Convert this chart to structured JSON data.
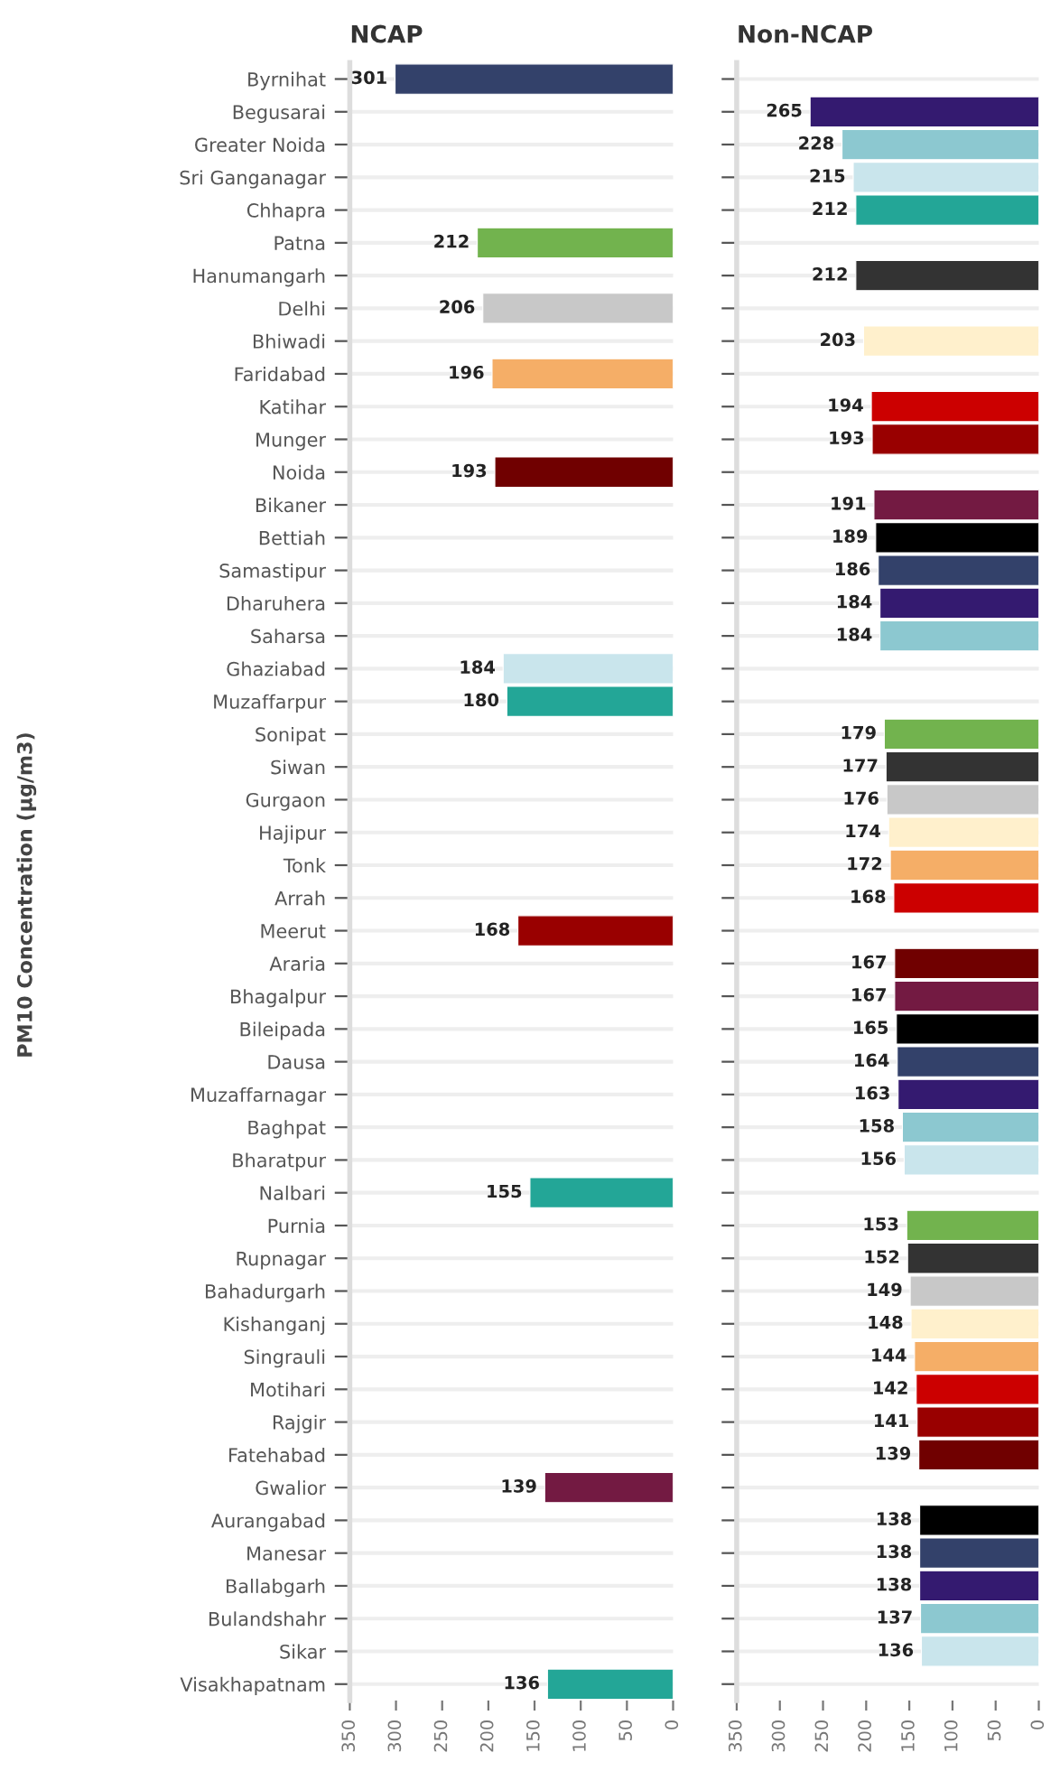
{
  "chart_data": [
    {
      "type": "bar",
      "orientation": "horizontal",
      "title": "NCAP",
      "ylabel": "PM10 Concentration (µg/m3)",
      "categories": [
        "Byrnihat",
        "Begusarai",
        "Greater Noida",
        "Sri Ganganagar",
        "Chhapra",
        "Patna",
        "Hanumangarh",
        "Delhi",
        "Bhiwadi",
        "Faridabad",
        "Katihar",
        "Munger",
        "Noida",
        "Bikaner",
        "Bettiah",
        "Samastipur",
        "Dharuhera",
        "Saharsa",
        "Ghaziabad",
        "Muzaffarpur",
        "Sonipat",
        "Siwan",
        "Gurgaon",
        "Hajipur",
        "Tonk",
        "Arrah",
        "Meerut",
        "Araria",
        "Bhagalpur",
        "Bileipada",
        "Dausa",
        "Muzaffarnagar",
        "Baghpat",
        "Bharatpur",
        "Nalbari",
        "Purnia",
        "Rupnagar",
        "Bahadurgarh",
        "Kishanganj",
        "Singrauli",
        "Motihari",
        "Rajgir",
        "Fatehabad",
        "Gwalior",
        "Aurangabad",
        "Manesar",
        "Ballabgarh",
        "Bulandshahr",
        "Sikar",
        "Visakhapatnam"
      ],
      "values": [
        301,
        null,
        null,
        null,
        null,
        212,
        null,
        206,
        null,
        196,
        null,
        null,
        193,
        null,
        null,
        null,
        null,
        null,
        184,
        180,
        null,
        null,
        null,
        null,
        null,
        null,
        168,
        null,
        null,
        null,
        null,
        null,
        null,
        null,
        155,
        null,
        null,
        null,
        null,
        null,
        null,
        null,
        null,
        139,
        null,
        null,
        null,
        null,
        null,
        136
      ],
      "colors": [
        "#33416a",
        null,
        null,
        null,
        null,
        "#72b34e",
        null,
        "#c8c8c8",
        null,
        "#f5ae67",
        null,
        null,
        "#700000",
        null,
        null,
        null,
        null,
        null,
        "#c9e5ec",
        "#23a697",
        null,
        null,
        null,
        null,
        null,
        null,
        "#990000",
        null,
        null,
        null,
        null,
        null,
        null,
        null,
        "#23a697",
        null,
        null,
        null,
        null,
        null,
        null,
        null,
        null,
        "#731a42",
        null,
        null,
        null,
        null,
        null,
        "#23a697"
      ],
      "xlim": [
        350,
        0
      ],
      "xticks": [
        350,
        300,
        250,
        200,
        150,
        100,
        50,
        0
      ],
      "grid": "y",
      "data_labels": true
    },
    {
      "type": "bar",
      "orientation": "horizontal",
      "title": "Non-NCAP",
      "values": [
        null,
        265,
        228,
        215,
        212,
        null,
        212,
        null,
        203,
        null,
        194,
        193,
        null,
        191,
        189,
        186,
        184,
        184,
        null,
        null,
        179,
        177,
        176,
        174,
        172,
        168,
        null,
        167,
        167,
        165,
        164,
        163,
        158,
        156,
        null,
        153,
        152,
        149,
        148,
        144,
        142,
        141,
        139,
        null,
        138,
        138,
        138,
        137,
        136,
        null
      ],
      "colors": [
        null,
        "#341a70",
        "#8cc8d0",
        "#c9e5ec",
        "#23a697",
        null,
        "#333333",
        null,
        "#fff0cc",
        null,
        "#cc0000",
        "#990000",
        null,
        "#731a42",
        "#000000",
        "#33416a",
        "#341a70",
        "#8cc8d0",
        null,
        null,
        "#72b34e",
        "#333333",
        "#c8c8c8",
        "#fff0cc",
        "#f5ae67",
        "#cc0000",
        null,
        "#700000",
        "#731a42",
        "#000000",
        "#33416a",
        "#341a70",
        "#8cc8d0",
        "#c9e5ec",
        null,
        "#72b34e",
        "#333333",
        "#c8c8c8",
        "#fff0cc",
        "#f5ae67",
        "#cc0000",
        "#990000",
        "#700000",
        null,
        "#000000",
        "#33416a",
        "#341a70",
        "#8cc8d0",
        "#c9e5ec",
        null
      ],
      "xlim": [
        350,
        0
      ],
      "xticks": [
        350,
        300,
        250,
        200,
        150,
        100,
        50,
        0
      ],
      "grid": "y",
      "data_labels": true,
      "tick_labels": "x"
    }
  ]
}
